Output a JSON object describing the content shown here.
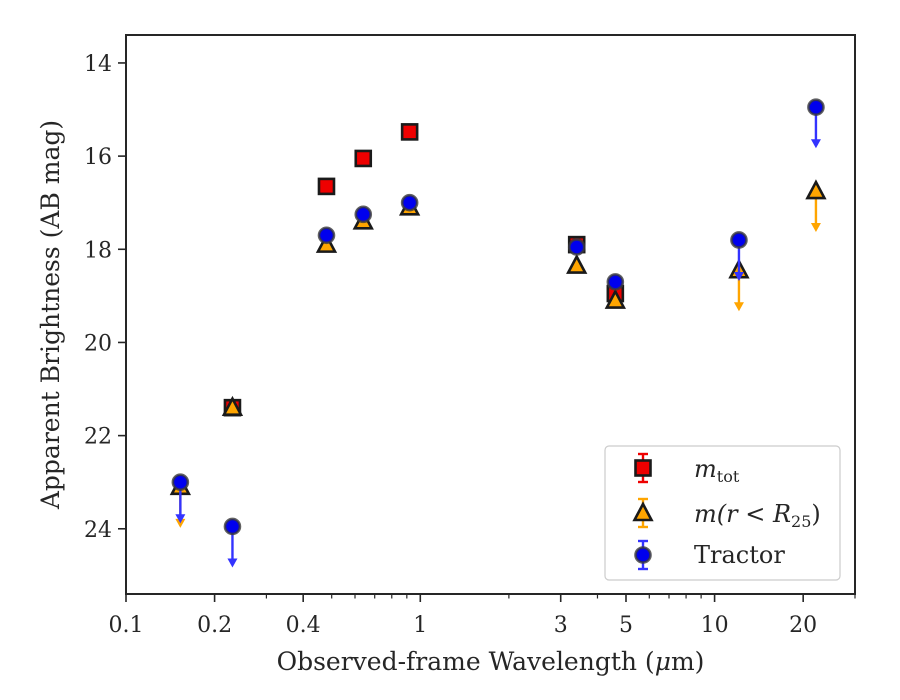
{
  "chart_data": {
    "type": "scatter",
    "xlabel_parts": [
      "Observed-frame Wavelength (",
      "μ",
      "m)"
    ],
    "ylabel": "Apparent Brightness (AB mag)",
    "x_scale": "log",
    "xlim": [
      0.1,
      30
    ],
    "ylim": [
      25.4,
      13.4
    ],
    "y_inverted": true,
    "grid": false,
    "legend_position": "lower-right",
    "x_ticks": [
      {
        "value": 0.1,
        "label": "0.1"
      },
      {
        "value": 0.2,
        "label": "0.2"
      },
      {
        "value": 0.4,
        "label": "0.4"
      },
      {
        "value": 1,
        "label": "1"
      },
      {
        "value": 3,
        "label": "3"
      },
      {
        "value": 5,
        "label": "5"
      },
      {
        "value": 10,
        "label": "10"
      },
      {
        "value": 20,
        "label": "20"
      }
    ],
    "y_ticks": [
      {
        "value": 14,
        "label": "14"
      },
      {
        "value": 16,
        "label": "16"
      },
      {
        "value": 18,
        "label": "18"
      },
      {
        "value": 20,
        "label": "20"
      },
      {
        "value": 22,
        "label": "22"
      },
      {
        "value": 24,
        "label": "24"
      }
    ],
    "series": [
      {
        "legend": {
          "base": "m",
          "sub": "tot",
          "suffix": ""
        },
        "marker": "square",
        "color": "#ee0000",
        "points": [
          {
            "x": 0.23,
            "y": 21.4,
            "upper_limit": false
          },
          {
            "x": 0.48,
            "y": 16.65,
            "upper_limit": false
          },
          {
            "x": 0.64,
            "y": 16.05,
            "upper_limit": false
          },
          {
            "x": 0.92,
            "y": 15.48,
            "upper_limit": false
          },
          {
            "x": 3.4,
            "y": 17.9,
            "upper_limit": false
          },
          {
            "x": 4.6,
            "y": 18.95,
            "upper_limit": false
          }
        ]
      },
      {
        "legend": {
          "base": "m(r < R",
          "sub": "25",
          "suffix": ")"
        },
        "marker": "triangle",
        "color": "#ffa500",
        "points": [
          {
            "x": 0.153,
            "y": 23.1,
            "upper_limit": true
          },
          {
            "x": 0.23,
            "y": 21.4,
            "upper_limit": false
          },
          {
            "x": 0.48,
            "y": 17.9,
            "upper_limit": false
          },
          {
            "x": 0.64,
            "y": 17.4,
            "upper_limit": false
          },
          {
            "x": 0.92,
            "y": 17.1,
            "upper_limit": false
          },
          {
            "x": 3.4,
            "y": 18.35,
            "upper_limit": false
          },
          {
            "x": 4.6,
            "y": 19.1,
            "upper_limit": false
          },
          {
            "x": 12.1,
            "y": 18.45,
            "upper_limit": true
          },
          {
            "x": 22.1,
            "y": 16.75,
            "upper_limit": true
          }
        ]
      },
      {
        "legend": {
          "base": "Tractor",
          "sub": "",
          "suffix": ""
        },
        "marker": "circle",
        "color": "#0000ee",
        "points": [
          {
            "x": 0.153,
            "y": 23.0,
            "upper_limit": true
          },
          {
            "x": 0.23,
            "y": 23.95,
            "upper_limit": true
          },
          {
            "x": 0.48,
            "y": 17.7,
            "upper_limit": false
          },
          {
            "x": 0.64,
            "y": 17.25,
            "upper_limit": false
          },
          {
            "x": 0.92,
            "y": 17.0,
            "upper_limit": false
          },
          {
            "x": 3.4,
            "y": 17.95,
            "upper_limit": false
          },
          {
            "x": 4.6,
            "y": 18.7,
            "upper_limit": false
          },
          {
            "x": 12.1,
            "y": 17.8,
            "upper_limit": true
          },
          {
            "x": 22.1,
            "y": 14.95,
            "upper_limit": true
          }
        ]
      }
    ]
  }
}
